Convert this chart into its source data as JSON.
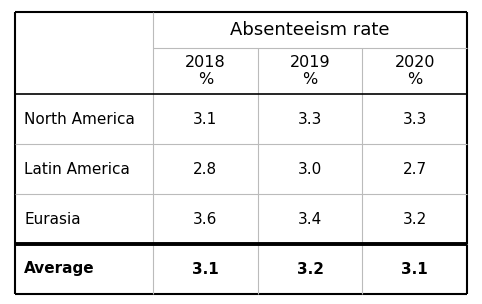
{
  "title": "Absenteeism rate",
  "col_headers": [
    "2018\n%",
    "2019\n%",
    "2020\n%"
  ],
  "rows": [
    {
      "label": "North America",
      "values": [
        "3.1",
        "3.3",
        "3.3"
      ],
      "bold": false
    },
    {
      "label": "Latin America",
      "values": [
        "2.8",
        "3.0",
        "2.7"
      ],
      "bold": false
    },
    {
      "label": "Eurasia",
      "values": [
        "3.6",
        "3.4",
        "3.2"
      ],
      "bold": false
    },
    {
      "label": "Average",
      "values": [
        "3.1",
        "3.2",
        "3.1"
      ],
      "bold": true
    }
  ],
  "bg_color": "#ffffff",
  "border_color": "#000000",
  "thin_line_color": "#bbbbbb",
  "thick_line_color": "#000000",
  "font_size": 11,
  "header_font_size": 11.5,
  "title_font_size": 13
}
